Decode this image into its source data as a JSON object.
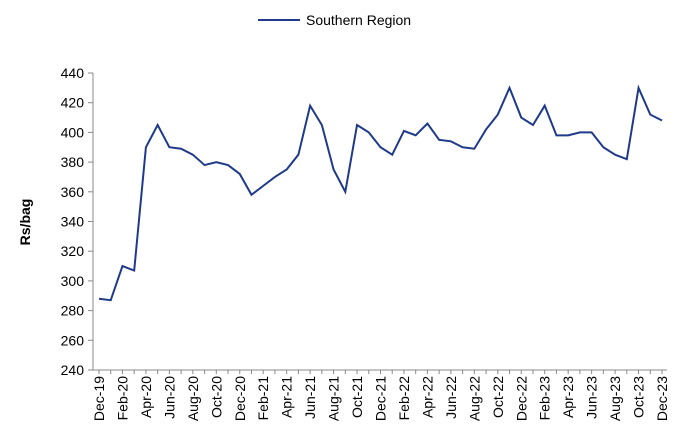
{
  "chart_data": {
    "type": "line",
    "y_label": "Rs/bag",
    "categories": [
      "Dec-19",
      null,
      "Feb-20",
      null,
      "Apr-20",
      null,
      "Jun-20",
      null,
      "Aug-20",
      null,
      "Oct-20",
      null,
      "Dec-20",
      null,
      "Feb-21",
      null,
      "Apr-21",
      null,
      "Jun-21",
      null,
      "Aug-21",
      null,
      "Oct-21",
      null,
      "Dec-21",
      null,
      "Feb-22",
      null,
      "Apr-22",
      null,
      "Jun-22",
      null,
      "Aug-22",
      null,
      "Oct-22",
      null,
      "Dec-22",
      null,
      "Feb-23",
      null,
      "Apr-23",
      null,
      "Jun-23",
      null,
      "Aug-23",
      null,
      "Oct-23",
      null,
      "Dec-23"
    ],
    "series": [
      {
        "name": "Southern Region",
        "color": "#1f3a8a",
        "values": [
          288,
          287,
          310,
          307,
          390,
          405,
          390,
          389,
          385,
          378,
          380,
          378,
          372,
          358,
          364,
          370,
          375,
          385,
          418,
          405,
          375,
          360,
          405,
          400,
          390,
          385,
          401,
          398,
          406,
          395,
          394,
          390,
          389,
          402,
          412,
          430,
          410,
          405,
          418,
          398,
          398,
          400,
          400,
          390,
          385,
          382,
          430,
          412,
          408
        ]
      }
    ],
    "ylim": [
      240,
      440
    ],
    "yticks": [
      240,
      260,
      280,
      300,
      320,
      340,
      360,
      380,
      400,
      420,
      440
    ],
    "legend": "top"
  }
}
